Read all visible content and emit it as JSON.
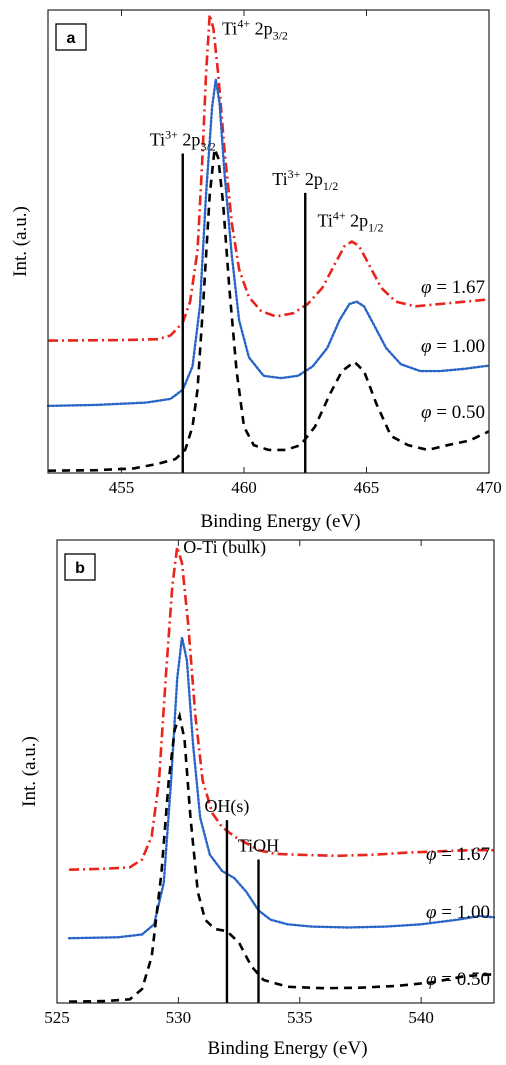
{
  "chart_data": [
    {
      "type": "line",
      "panel_label": "a",
      "xlabel": "Binding Energy (eV)",
      "ylabel": "Int. (a.u.)",
      "xlim": [
        452,
        470
      ],
      "ylim": [
        0,
        1
      ],
      "xticks": [
        455,
        460,
        465,
        470
      ],
      "grid": false,
      "series": [
        {
          "name": "φ = 1.67",
          "label_main": "φ",
          "label_rest": " = 1.67",
          "color": "#e8241c",
          "dash": "dashdot",
          "points": [
            [
              452,
              0.286
            ],
            [
              455,
              0.287
            ],
            [
              456.5,
              0.289
            ],
            [
              457,
              0.297
            ],
            [
              457.5,
              0.325
            ],
            [
              457.8,
              0.37
            ],
            [
              458.1,
              0.48
            ],
            [
              458.3,
              0.68
            ],
            [
              458.45,
              0.86
            ],
            [
              458.6,
              0.99
            ],
            [
              458.75,
              0.96
            ],
            [
              458.95,
              0.86
            ],
            [
              459.2,
              0.7
            ],
            [
              459.5,
              0.54
            ],
            [
              459.8,
              0.44
            ],
            [
              460.2,
              0.38
            ],
            [
              460.7,
              0.35
            ],
            [
              461.3,
              0.338
            ],
            [
              462,
              0.345
            ],
            [
              462.6,
              0.365
            ],
            [
              463.2,
              0.4
            ],
            [
              463.7,
              0.45
            ],
            [
              464.1,
              0.49
            ],
            [
              464.4,
              0.5
            ],
            [
              464.7,
              0.49
            ],
            [
              465.1,
              0.45
            ],
            [
              465.6,
              0.4
            ],
            [
              466.2,
              0.37
            ],
            [
              467,
              0.36
            ],
            [
              468,
              0.365
            ],
            [
              469,
              0.37
            ],
            [
              470,
              0.375
            ]
          ]
        },
        {
          "name": "φ = 1.00",
          "label_main": "φ",
          "label_rest": " = 1.00",
          "color": "#2864c8",
          "dash": "dotted",
          "points": [
            [
              452,
              0.145
            ],
            [
              454,
              0.147
            ],
            [
              456,
              0.152
            ],
            [
              457,
              0.16
            ],
            [
              457.5,
              0.18
            ],
            [
              457.9,
              0.23
            ],
            [
              458.2,
              0.36
            ],
            [
              458.45,
              0.6
            ],
            [
              458.7,
              0.79
            ],
            [
              458.85,
              0.85
            ],
            [
              459,
              0.8
            ],
            [
              459.2,
              0.65
            ],
            [
              459.5,
              0.47
            ],
            [
              459.8,
              0.33
            ],
            [
              460.2,
              0.25
            ],
            [
              460.8,
              0.21
            ],
            [
              461.5,
              0.205
            ],
            [
              462.2,
              0.21
            ],
            [
              462.8,
              0.23
            ],
            [
              463.4,
              0.27
            ],
            [
              463.9,
              0.33
            ],
            [
              464.3,
              0.365
            ],
            [
              464.6,
              0.37
            ],
            [
              464.9,
              0.36
            ],
            [
              465.3,
              0.32
            ],
            [
              465.8,
              0.27
            ],
            [
              466.4,
              0.235
            ],
            [
              467.2,
              0.22
            ],
            [
              468,
              0.22
            ],
            [
              469,
              0.225
            ],
            [
              470,
              0.232
            ]
          ]
        },
        {
          "name": "φ = 0.50",
          "label_main": "φ",
          "label_rest": " = 0.50",
          "color": "#000000",
          "dash": "dashed",
          "points": [
            [
              452,
              0.005
            ],
            [
              454,
              0.006
            ],
            [
              455.5,
              0.01
            ],
            [
              456.5,
              0.02
            ],
            [
              457.2,
              0.03
            ],
            [
              457.6,
              0.05
            ],
            [
              457.9,
              0.1
            ],
            [
              458.1,
              0.18
            ],
            [
              458.35,
              0.38
            ],
            [
              458.6,
              0.6
            ],
            [
              458.8,
              0.7
            ],
            [
              458.95,
              0.68
            ],
            [
              459.15,
              0.58
            ],
            [
              459.4,
              0.4
            ],
            [
              459.7,
              0.22
            ],
            [
              460,
              0.1
            ],
            [
              460.4,
              0.06
            ],
            [
              461,
              0.05
            ],
            [
              461.7,
              0.05
            ],
            [
              462.3,
              0.06
            ],
            [
              462.9,
              0.1
            ],
            [
              463.5,
              0.17
            ],
            [
              464,
              0.22
            ],
            [
              464.5,
              0.24
            ],
            [
              464.9,
              0.22
            ],
            [
              465.4,
              0.15
            ],
            [
              466,
              0.08
            ],
            [
              466.7,
              0.06
            ],
            [
              467.5,
              0.05
            ],
            [
              468.3,
              0.06
            ],
            [
              469.2,
              0.07
            ],
            [
              470,
              0.09
            ]
          ]
        }
      ],
      "markers": [
        {
          "x": 457.5,
          "y_top": 0.69,
          "label_base": "Ti",
          "label_sup": "3+",
          "label_mid": " 2p",
          "label_sub": "3/2"
        },
        {
          "x": 462.5,
          "y_top": 0.605,
          "label_base": "Ti",
          "label_sup": "3+",
          "label_mid": " 2p",
          "label_sub": "1/2"
        }
      ],
      "peak_labels": [
        {
          "x": 459.1,
          "y": 0.96,
          "label_base": "Ti",
          "label_sup": "4+",
          "label_mid": " 2p",
          "label_sub": "3/2"
        },
        {
          "x": 463.0,
          "y": 0.545,
          "label_base": "Ti",
          "label_sup": "4+",
          "label_mid": " 2p",
          "label_sub": "1/2"
        }
      ]
    },
    {
      "type": "line",
      "panel_label": "b",
      "xlabel": "Binding Energy (eV)",
      "ylabel": "Int. (a.u.)",
      "xlim": [
        525,
        543
      ],
      "ylim": [
        0,
        1
      ],
      "xticks": [
        525,
        530,
        535,
        540
      ],
      "grid": false,
      "series": [
        {
          "name": "φ = 1.67",
          "label_main": "φ",
          "label_rest": " = 1.67",
          "color": "#e8241c",
          "dash": "dashdot",
          "points": [
            [
              525.5,
              0.288
            ],
            [
              527,
              0.29
            ],
            [
              528,
              0.293
            ],
            [
              528.5,
              0.31
            ],
            [
              528.9,
              0.36
            ],
            [
              529.2,
              0.48
            ],
            [
              529.5,
              0.72
            ],
            [
              529.75,
              0.9
            ],
            [
              529.95,
              0.985
            ],
            [
              530.15,
              0.95
            ],
            [
              530.4,
              0.82
            ],
            [
              530.7,
              0.62
            ],
            [
              531,
              0.48
            ],
            [
              531.4,
              0.41
            ],
            [
              531.8,
              0.38
            ],
            [
              532.3,
              0.36
            ],
            [
              532.8,
              0.345
            ],
            [
              533.3,
              0.33
            ],
            [
              534,
              0.322
            ],
            [
              535,
              0.32
            ],
            [
              536.5,
              0.318
            ],
            [
              538,
              0.32
            ],
            [
              539.5,
              0.325
            ],
            [
              541,
              0.328
            ],
            [
              542,
              0.33
            ],
            [
              543,
              0.33
            ]
          ]
        },
        {
          "name": "φ = 1.00",
          "label_main": "φ",
          "label_rest": " = 1.00",
          "color": "#2864c8",
          "dash": "dotted",
          "points": [
            [
              525.5,
              0.14
            ],
            [
              527.5,
              0.142
            ],
            [
              528.5,
              0.148
            ],
            [
              529,
              0.17
            ],
            [
              529.4,
              0.26
            ],
            [
              529.7,
              0.48
            ],
            [
              529.95,
              0.7
            ],
            [
              530.15,
              0.79
            ],
            [
              530.35,
              0.74
            ],
            [
              530.6,
              0.56
            ],
            [
              530.9,
              0.4
            ],
            [
              531.3,
              0.32
            ],
            [
              531.8,
              0.285
            ],
            [
              532.3,
              0.27
            ],
            [
              532.8,
              0.24
            ],
            [
              533.3,
              0.2
            ],
            [
              533.8,
              0.18
            ],
            [
              534.5,
              0.17
            ],
            [
              535.5,
              0.165
            ],
            [
              537,
              0.163
            ],
            [
              538.5,
              0.165
            ],
            [
              540,
              0.17
            ],
            [
              541.5,
              0.18
            ],
            [
              542.4,
              0.188
            ],
            [
              543,
              0.185
            ]
          ]
        },
        {
          "name": "φ = 0.50",
          "label_main": "φ",
          "label_rest": " = 0.50",
          "color": "#000000",
          "dash": "dashed",
          "points": [
            [
              525.5,
              0.003
            ],
            [
              527,
              0.004
            ],
            [
              528,
              0.008
            ],
            [
              528.5,
              0.03
            ],
            [
              528.9,
              0.1
            ],
            [
              529.3,
              0.28
            ],
            [
              529.6,
              0.48
            ],
            [
              529.85,
              0.59
            ],
            [
              530.05,
              0.62
            ],
            [
              530.25,
              0.57
            ],
            [
              530.5,
              0.4
            ],
            [
              530.8,
              0.24
            ],
            [
              531.1,
              0.18
            ],
            [
              531.5,
              0.16
            ],
            [
              532,
              0.155
            ],
            [
              532.5,
              0.13
            ],
            [
              533,
              0.08
            ],
            [
              533.5,
              0.05
            ],
            [
              534.5,
              0.035
            ],
            [
              536,
              0.032
            ],
            [
              537.5,
              0.033
            ],
            [
              539,
              0.037
            ],
            [
              540.5,
              0.045
            ],
            [
              541.8,
              0.058
            ],
            [
              543,
              0.062
            ]
          ]
        }
      ],
      "markers": [
        {
          "x": 532.0,
          "y_top": 0.395,
          "label_plain": "OH(s)"
        },
        {
          "x": 533.3,
          "y_top": 0.31,
          "label_plain": "TiOH"
        }
      ],
      "peak_labels": [
        {
          "x": 530.2,
          "y": 0.985,
          "label_plain": "O-Ti (bulk)"
        }
      ]
    }
  ]
}
